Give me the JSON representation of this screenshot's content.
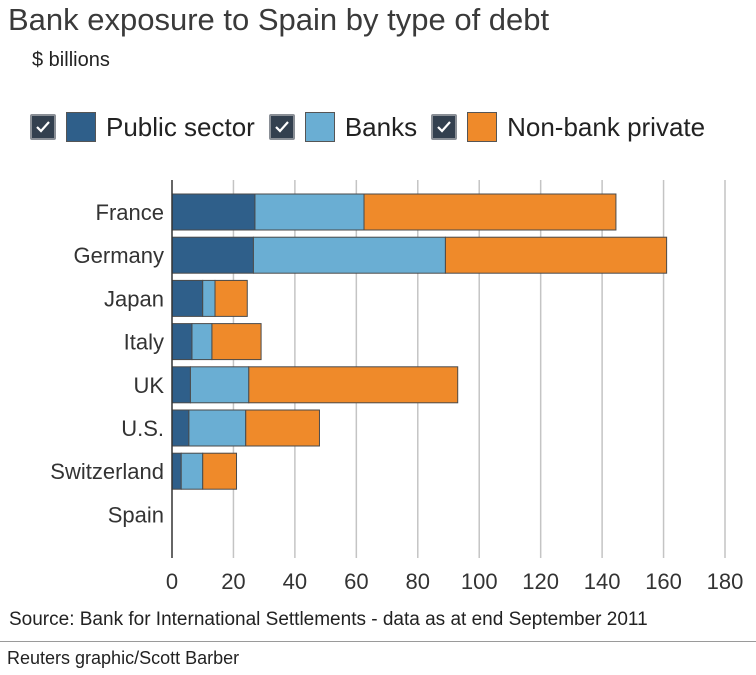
{
  "header": {
    "title": "Bank exposure to Spain by type of debt",
    "subtitle": "$ billions"
  },
  "legend": {
    "items": [
      {
        "label": "Public sector",
        "checked": true,
        "color": "#2f5f8a"
      },
      {
        "label": "Banks",
        "checked": true,
        "color": "#6aaed3"
      },
      {
        "label": "Non-bank private",
        "checked": true,
        "color": "#ef8a2a"
      }
    ]
  },
  "chart_data": {
    "type": "bar",
    "orientation": "horizontal",
    "stacked": true,
    "categories": [
      "France",
      "Germany",
      "Japan",
      "Italy",
      "UK",
      "U.S.",
      "Switzerland",
      "Spain"
    ],
    "series": [
      {
        "name": "Public sector",
        "color": "#2f5f8a",
        "values": [
          27,
          26.5,
          10,
          6.5,
          6,
          5.5,
          3,
          0
        ]
      },
      {
        "name": "Banks",
        "color": "#6aaed3",
        "values": [
          35.5,
          62.5,
          4,
          6.5,
          19,
          18.5,
          7,
          0
        ]
      },
      {
        "name": "Non-bank private",
        "color": "#ef8a2a",
        "values": [
          82,
          72,
          10.5,
          16,
          68,
          24,
          11,
          0
        ]
      }
    ],
    "xlim": [
      0,
      180
    ],
    "xticks": [
      0,
      20,
      40,
      60,
      80,
      100,
      120,
      140,
      160,
      180
    ],
    "grid": "vertical"
  },
  "footer": {
    "source": "Source: Bank for International Settlements - data as at end September 2011",
    "credit": "Reuters graphic/Scott Barber"
  }
}
